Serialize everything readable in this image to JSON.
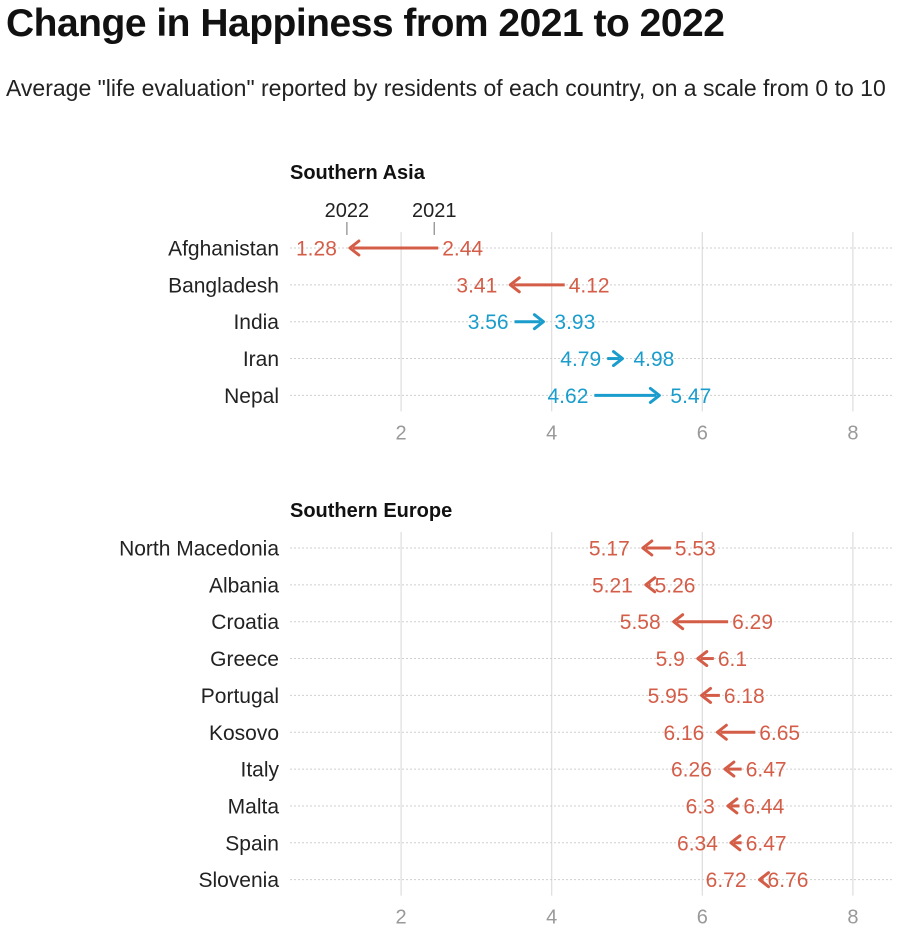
{
  "title": "Change in Happiness from 2021 to 2022",
  "subtitle": "Average \"life evaluation\" reported by residents of each country, on a scale from 0 to 10",
  "colors": {
    "decrease": "#d45d48",
    "increase": "#1a9dcc",
    "grid": "#dddddd",
    "tick": "#999999"
  },
  "chart_data": [
    {
      "type": "arrow",
      "title": "Southern Asia",
      "legend_labels": [
        "2022",
        "2021"
      ],
      "xlim": [
        0.5,
        8.5
      ],
      "xticks": [
        2,
        4,
        6,
        8
      ],
      "series_names": [
        "2021",
        "2022"
      ],
      "rows": [
        {
          "country": "Afghanistan",
          "v2021": 2.44,
          "v2022": 1.28
        },
        {
          "country": "Bangladesh",
          "v2021": 4.12,
          "v2022": 3.41
        },
        {
          "country": "India",
          "v2021": 3.56,
          "v2022": 3.93
        },
        {
          "country": "Iran",
          "v2021": 4.79,
          "v2022": 4.98
        },
        {
          "country": "Nepal",
          "v2021": 4.62,
          "v2022": 5.47
        }
      ]
    },
    {
      "type": "arrow",
      "title": "Southern Europe",
      "xlim": [
        0.5,
        8.5
      ],
      "xticks": [
        2,
        4,
        6,
        8
      ],
      "series_names": [
        "2021",
        "2022"
      ],
      "rows": [
        {
          "country": "North Macedonia",
          "v2021": 5.53,
          "v2022": 5.17
        },
        {
          "country": "Albania",
          "v2021": 5.26,
          "v2022": 5.21
        },
        {
          "country": "Croatia",
          "v2021": 6.29,
          "v2022": 5.58
        },
        {
          "country": "Greece",
          "v2021": 6.1,
          "v2022": 5.9
        },
        {
          "country": "Portugal",
          "v2021": 6.18,
          "v2022": 5.95
        },
        {
          "country": "Kosovo",
          "v2021": 6.65,
          "v2022": 6.16
        },
        {
          "country": "Italy",
          "v2021": 6.47,
          "v2022": 6.26
        },
        {
          "country": "Malta",
          "v2021": 6.44,
          "v2022": 6.3
        },
        {
          "country": "Spain",
          "v2021": 6.47,
          "v2022": 6.34
        },
        {
          "country": "Slovenia",
          "v2021": 6.76,
          "v2022": 6.72
        }
      ]
    }
  ]
}
